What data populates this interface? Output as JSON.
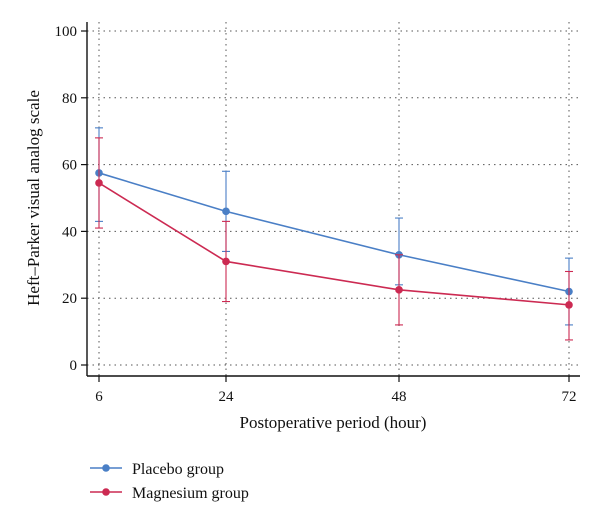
{
  "chart_data": {
    "type": "line",
    "title": "",
    "xlabel": "Postoperative period (hour)",
    "ylabel": "Heft–Parker visual analog scale",
    "categories": [
      "6",
      "24",
      "48",
      "72"
    ],
    "y_ticks": [
      "0",
      "20",
      "40",
      "60",
      "80",
      "100"
    ],
    "ylim": [
      0,
      100
    ],
    "grid": true,
    "legend_position": "bottom-left",
    "series": [
      {
        "name": "Placebo group",
        "color": "#4a7fc6",
        "values": [
          57.5,
          46,
          33,
          22
        ],
        "error_low": [
          43,
          34,
          24,
          12
        ],
        "error_high": [
          71,
          58,
          44,
          32
        ]
      },
      {
        "name": "Magnesium group",
        "color": "#cc2a52",
        "values": [
          54.5,
          31,
          22.5,
          18
        ],
        "error_low": [
          41,
          19,
          12,
          7.5
        ],
        "error_high": [
          68,
          43,
          33,
          28
        ]
      }
    ]
  }
}
